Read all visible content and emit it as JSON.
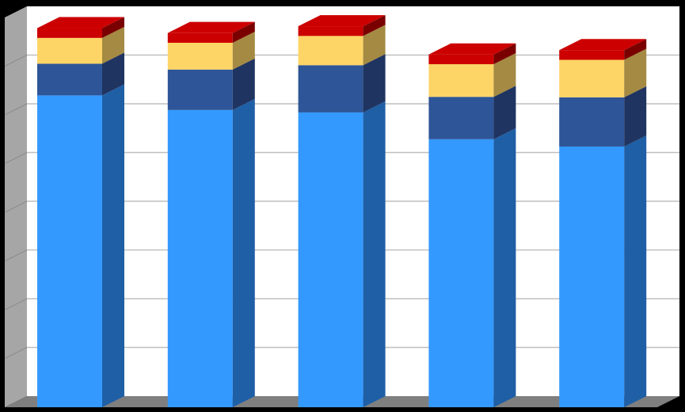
{
  "chart_data": {
    "type": "bar",
    "stacked": true,
    "three_d": true,
    "categories": [
      "",
      "",
      "",
      "",
      ""
    ],
    "series": [
      {
        "values": [
          6.4,
          6.1,
          6.05,
          5.5,
          5.35
        ]
      },
      {
        "values": [
          0.65,
          0.83,
          0.97,
          0.87,
          1.01
        ]
      },
      {
        "values": [
          0.53,
          0.55,
          0.6,
          0.67,
          0.77
        ]
      },
      {
        "values": [
          0.2,
          0.2,
          0.2,
          0.2,
          0.2
        ]
      }
    ],
    "ylim": [
      0,
      8
    ],
    "grid": true,
    "legend": "none",
    "title": "",
    "xlabel": "",
    "ylabel": "",
    "colors": {
      "series_front": [
        "#3399FF",
        "#2E5597",
        "#FDD466",
        "#CC0000"
      ],
      "series_side": [
        "#1F5FA6",
        "#1F3460",
        "#A48A42",
        "#7A0000"
      ],
      "background": "#000000",
      "wall": "#FFFFFF",
      "side_wall": "#A6A6A6",
      "floor": "#7F7F7F",
      "gridline": "#BFBFBF"
    }
  }
}
